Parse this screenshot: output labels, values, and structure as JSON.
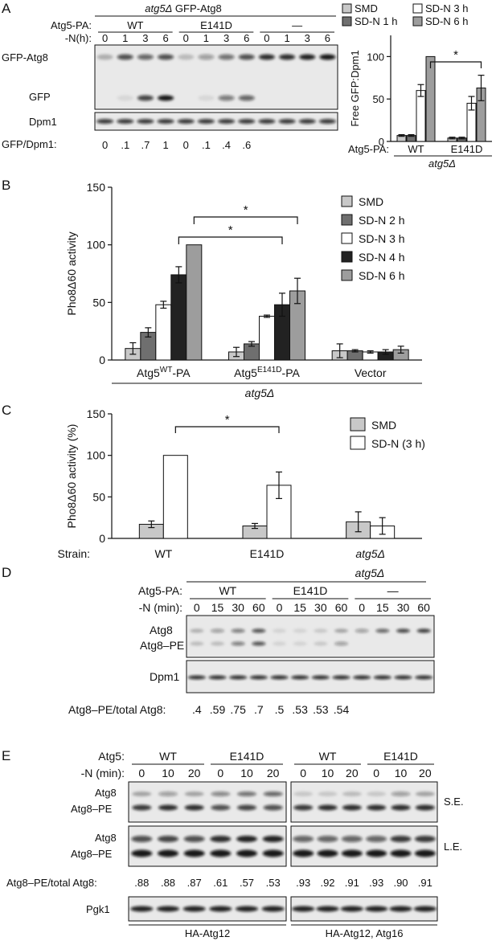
{
  "panelA": {
    "label": "A",
    "title_strain": "atg5Δ",
    "title_rest": "GFP-Atg8",
    "row_atg5pa": "Atg5-PA:",
    "row_n": "-N(h):",
    "groups": [
      "WT",
      "E141D",
      "—"
    ],
    "times": [
      "0",
      "1",
      "3",
      "6",
      "0",
      "1",
      "3",
      "6",
      "0",
      "1",
      "3",
      "6"
    ],
    "band_gfpatg8": "GFP-Atg8",
    "band_gfp": "GFP",
    "band_dpm1": "Dpm1",
    "ratio_label": "GFP/Dpm1:",
    "ratios": [
      "0",
      ".1",
      ".7",
      "1",
      "0",
      ".1",
      ".4",
      ".6"
    ],
    "chart_data": {
      "type": "bar",
      "legend": [
        "SMD",
        "SD-N 1 h",
        "SD-N 3 h",
        "SD-N 6 h"
      ],
      "colors": [
        "#c8c8c8",
        "#6f6f6f",
        "#ffffff",
        "#9d9d9d"
      ],
      "categories": [
        "WT",
        "E141D"
      ],
      "series": [
        {
          "name": "SMD",
          "values": [
            7,
            4
          ],
          "err": [
            1,
            1
          ]
        },
        {
          "name": "SD-N 1 h",
          "values": [
            7,
            4
          ],
          "err": [
            1,
            1
          ]
        },
        {
          "name": "SD-N 3 h",
          "values": [
            60,
            45
          ],
          "err": [
            7,
            8
          ]
        },
        {
          "name": "SD-N 6 h",
          "values": [
            100,
            63
          ],
          "err": [
            0,
            15
          ]
        }
      ],
      "ylabel": "Free GFP:Dpm1",
      "yticks": [
        "0",
        "50",
        "100"
      ],
      "ylim": [
        0,
        125
      ],
      "xrow_label": "Atg5-PA:",
      "strain": "atg5Δ",
      "significance": "*"
    }
  },
  "panelB": {
    "label": "B",
    "chart_data": {
      "type": "bar",
      "legend": [
        "SMD",
        "SD-N 2 h",
        "SD-N 3 h",
        "SD-N 4 h",
        "SD-N 6 h"
      ],
      "colors": [
        "#c8c8c8",
        "#6f6f6f",
        "#ffffff",
        "#222222",
        "#9d9d9d"
      ],
      "categories": [
        "Atg5WT-PA",
        "Atg5E141D-PA",
        "Vector"
      ],
      "series": [
        {
          "name": "SMD",
          "values": [
            10,
            7,
            8
          ],
          "err": [
            5,
            4,
            6
          ]
        },
        {
          "name": "SD-N 2 h",
          "values": [
            24,
            14,
            8
          ],
          "err": [
            4,
            2,
            1
          ]
        },
        {
          "name": "SD-N 3 h",
          "values": [
            48,
            38,
            7
          ],
          "err": [
            3,
            1,
            1
          ]
        },
        {
          "name": "SD-N 4 h",
          "values": [
            74,
            48,
            7
          ],
          "err": [
            7,
            10,
            2
          ]
        },
        {
          "name": "SD-N 6 h",
          "values": [
            100,
            60,
            9
          ],
          "err": [
            0,
            11,
            3
          ]
        }
      ],
      "ylabel": "Pho8Δ60 activity",
      "yticks": [
        "0",
        "50",
        "100",
        "150"
      ],
      "ylim": [
        0,
        150
      ],
      "strain": "atg5Δ",
      "significance": [
        "*",
        "*"
      ]
    },
    "cat_parts": [
      {
        "base": "Atg5",
        "sup": "WT",
        "tail": "-PA"
      },
      {
        "base": "Atg5",
        "sup": "E141D",
        "tail": "-PA"
      },
      {
        "base": "Vector",
        "sup": "",
        "tail": ""
      }
    ]
  },
  "panelC": {
    "label": "C",
    "chart_data": {
      "type": "bar",
      "legend": [
        "SMD",
        "SD-N (3 h)"
      ],
      "colors": [
        "#c8c8c8",
        "#ffffff"
      ],
      "categories": [
        "WT",
        "E141D",
        "atg5Δ"
      ],
      "series": [
        {
          "name": "SMD",
          "values": [
            17,
            15,
            20
          ],
          "err": [
            4,
            3,
            12
          ]
        },
        {
          "name": "SD-N (3 h)",
          "values": [
            100,
            64,
            15
          ],
          "err": [
            0,
            16,
            10
          ]
        }
      ],
      "ylabel": "Pho8Δ60 activity (%)",
      "yticks": [
        "0",
        "50",
        "100",
        "150"
      ],
      "ylim": [
        0,
        150
      ],
      "xrow_label": "Strain:",
      "significance": "*"
    }
  },
  "panelD": {
    "label": "D",
    "strain": "atg5Δ",
    "row_atg5pa": "Atg5-PA:",
    "row_n": "-N (min):",
    "groups": [
      "WT",
      "E141D",
      "—"
    ],
    "times": [
      "0",
      "15",
      "30",
      "60",
      "0",
      "15",
      "30",
      "60",
      "0",
      "15",
      "30",
      "60"
    ],
    "band_atg8": "Atg8",
    "band_atg8pe": "Atg8–PE",
    "band_dpm1": "Dpm1",
    "ratio_label": "Atg8–PE/total Atg8:",
    "ratios": [
      ".4",
      ".59",
      ".75",
      ".7",
      ".5",
      ".53",
      ".53",
      ".54"
    ]
  },
  "panelE": {
    "label": "E",
    "row_atg5": "Atg5:",
    "row_n": "-N (min):",
    "groups": [
      "WT",
      "E141D",
      "WT",
      "E141D"
    ],
    "times": [
      "0",
      "10",
      "20",
      "0",
      "10",
      "20",
      "0",
      "10",
      "20",
      "0",
      "10",
      "20"
    ],
    "band_atg8": "Atg8",
    "band_atg8pe": "Atg8–PE",
    "exposure_short": "S.E.",
    "exposure_long": "L.E.",
    "ratio_label": "Atg8–PE/total Atg8:",
    "ratios": [
      ".88",
      ".88",
      ".87",
      ".61",
      ".57",
      ".53",
      ".93",
      ".92",
      ".91",
      ".93",
      ".90",
      ".91"
    ],
    "band_pgk1": "Pgk1",
    "strain_left": "HA-Atg12",
    "strain_right": "HA-Atg12, Atg16"
  }
}
